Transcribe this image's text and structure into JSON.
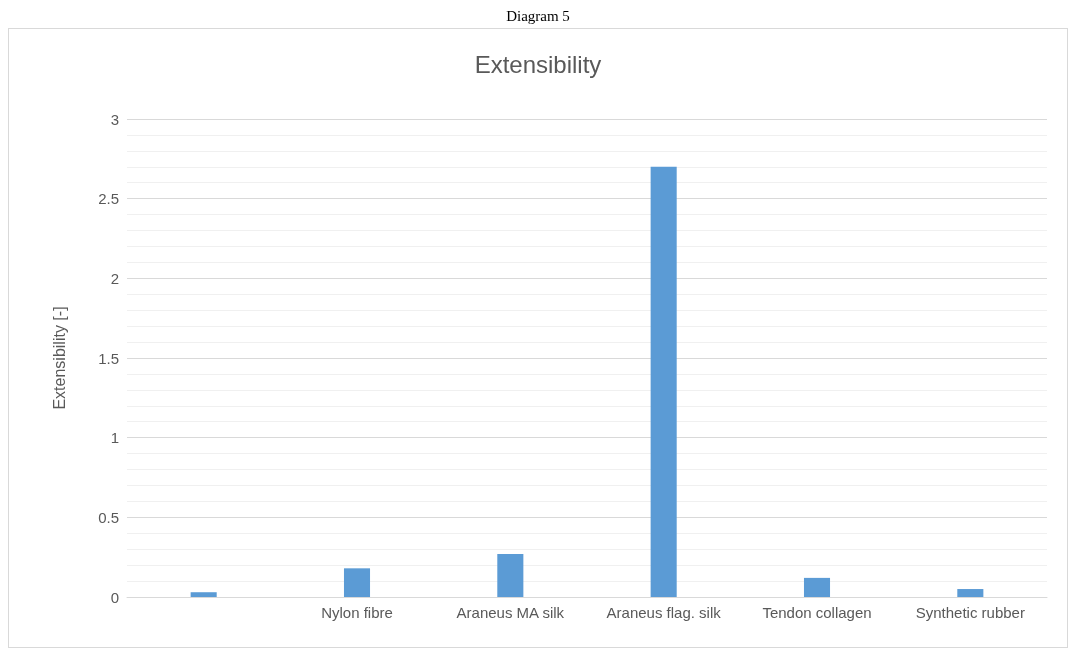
{
  "chart_data": {
    "type": "bar",
    "title": "Extensibility",
    "ylabel": "Extensibility [-]",
    "annotations": [
      "Diagram 5"
    ],
    "categories": [
      null,
      "Nylon fibre",
      "Araneus MA silk",
      "Araneus flag. silk",
      "Tendon collagen",
      "Synthetic rubber"
    ],
    "values": [
      0.03,
      0.18,
      0.27,
      2.7,
      0.12,
      0.05
    ],
    "color": "#5b9bd5",
    "ylim": [
      0,
      3
    ],
    "yticks": [
      0,
      0.5,
      1,
      1.5,
      2,
      2.5,
      3
    ],
    "grid": true
  }
}
